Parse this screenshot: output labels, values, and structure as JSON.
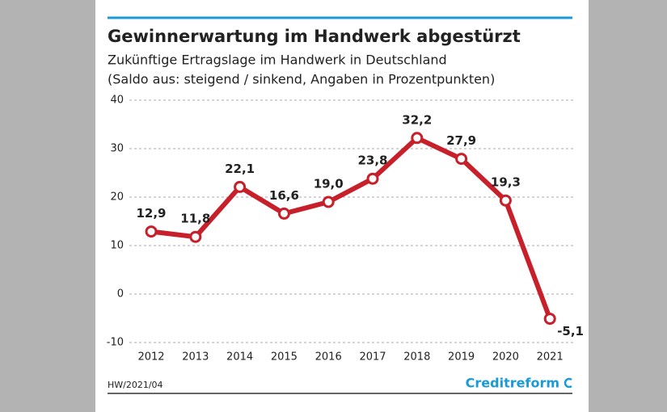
{
  "chart_data": {
    "type": "line",
    "title": "Gewinnerwartung im Handwerk abgestürzt",
    "subtitle": [
      "Zukünftige Ertragslage im Handwerk in Deutschland",
      "(Saldo aus: steigend / sinkend, Angaben in Prozentpunkten)"
    ],
    "categories": [
      "2012",
      "2013",
      "2014",
      "2015",
      "2016",
      "2017",
      "2018",
      "2019",
      "2020",
      "2021"
    ],
    "series": [
      {
        "name": "Saldo",
        "color": "#c8202a",
        "values": [
          12.9,
          11.8,
          22.1,
          16.6,
          19.0,
          23.8,
          32.2,
          27.9,
          19.3,
          -5.1
        ],
        "value_labels": [
          "12,9",
          "11,8",
          "22,1",
          "16,6",
          "19,0",
          "23,8",
          "32,2",
          "27,9",
          "19,3",
          "-5,1"
        ]
      }
    ],
    "ylim": [
      -10,
      40
    ],
    "yticks": [
      -10,
      0,
      10,
      20,
      30,
      40
    ],
    "grid": true,
    "source": "HW/2021/04",
    "logo": "Creditreform"
  }
}
